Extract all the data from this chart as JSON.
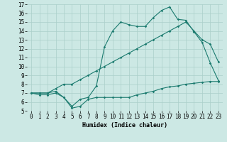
{
  "xlabel": "Humidex (Indice chaleur)",
  "bg_color": "#cce8e4",
  "grid_color": "#aacfca",
  "line_color": "#1a7a6e",
  "xlim": [
    -0.5,
    23.5
  ],
  "ylim": [
    5,
    17
  ],
  "xticks": [
    0,
    1,
    2,
    3,
    4,
    5,
    6,
    7,
    8,
    9,
    10,
    11,
    12,
    13,
    14,
    15,
    16,
    17,
    18,
    19,
    20,
    21,
    22,
    23
  ],
  "yticks": [
    5,
    6,
    7,
    8,
    9,
    10,
    11,
    12,
    13,
    14,
    15,
    16,
    17
  ],
  "line1_x": [
    0,
    1,
    2,
    3,
    4,
    5,
    6,
    7,
    8,
    9,
    10,
    11,
    12,
    13,
    14,
    15,
    16,
    17,
    18,
    19,
    20,
    21,
    22,
    23
  ],
  "line1_y": [
    7.0,
    6.8,
    6.8,
    7.0,
    6.5,
    5.3,
    5.5,
    6.3,
    6.5,
    6.5,
    6.5,
    6.5,
    6.5,
    6.8,
    7.0,
    7.2,
    7.5,
    7.7,
    7.8,
    8.0,
    8.1,
    8.2,
    8.3,
    8.3
  ],
  "line2_x": [
    0,
    1,
    2,
    3,
    4,
    5,
    6,
    7,
    8,
    9,
    10,
    11,
    12,
    13,
    14,
    15,
    16,
    17,
    18,
    19,
    20,
    21,
    22,
    23
  ],
  "line2_y": [
    7.0,
    7.0,
    7.0,
    7.2,
    6.5,
    5.5,
    6.3,
    6.5,
    7.8,
    12.2,
    14.0,
    15.0,
    14.7,
    14.5,
    14.5,
    15.5,
    16.3,
    16.7,
    15.3,
    15.2,
    13.9,
    12.7,
    10.4,
    8.4
  ],
  "line3_x": [
    0,
    1,
    2,
    3,
    4,
    5,
    6,
    7,
    8,
    9,
    10,
    11,
    12,
    13,
    14,
    15,
    16,
    17,
    18,
    19,
    20,
    21,
    22,
    23
  ],
  "line3_y": [
    7.0,
    7.0,
    7.0,
    7.5,
    8.0,
    8.0,
    8.5,
    9.0,
    9.5,
    10.0,
    10.5,
    11.0,
    11.5,
    12.0,
    12.5,
    13.0,
    13.5,
    14.0,
    14.5,
    15.0,
    14.0,
    13.0,
    12.5,
    10.5
  ],
  "tick_fontsize": 5.5,
  "xlabel_fontsize": 6.0
}
